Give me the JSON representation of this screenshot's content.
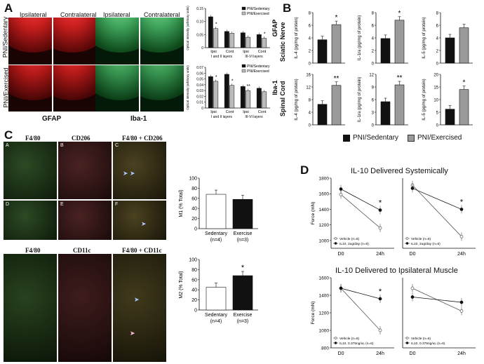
{
  "panels": {
    "A": {
      "label": "A",
      "col_headers": [
        "Ipsilateral",
        "Contralateral",
        "Ipsilateral",
        "Contralateral"
      ],
      "row_labels": [
        "PNI/Sedentary",
        "PNI/Exercised"
      ],
      "stain_labels": [
        "GFAP",
        "Iba-1"
      ],
      "colors": {
        "gfap": "#c81e1e",
        "iba1": "#3fa35a"
      }
    },
    "B": {
      "label": "B",
      "row_labels": [
        "Sciatic Nerve",
        "Spinal Cord"
      ]
    },
    "C": {
      "label": "C",
      "row1_headers": [
        "F4/80",
        "CD206",
        "F4/80 + CD206"
      ],
      "row1_letters": [
        "A",
        "B",
        "C",
        "D",
        "E",
        "F"
      ],
      "row2_headers": [
        "F4/80",
        "CD11c",
        "F4/80 + CD11c"
      ]
    },
    "D": {
      "label": "D",
      "titles": [
        "IL-10 Delivered Systemically",
        "IL-10 Delivered to Ipsilateral Muscle"
      ]
    }
  },
  "chart_data": [
    {
      "id": "A-gfap",
      "type": "bar",
      "ylabel": "Optical Intensity (arbitrary units)",
      "side_label": "GFAP",
      "ylim": [
        0,
        0.15
      ],
      "yticks": [
        "0",
        "0.05",
        "0.10",
        "0.15"
      ],
      "categories": [
        "Ipsi",
        "Cont",
        "Ipsi",
        "Cont"
      ],
      "groups": [
        "I and II layers",
        "III-VI layers"
      ],
      "series": [
        {
          "name": "PNI/Sedentary",
          "values": [
            0.118,
            0.062,
            0.057,
            0.05
          ]
        },
        {
          "name": "PNI/Exercised",
          "values": [
            0.073,
            0.055,
            0.04,
            0.036
          ]
        }
      ],
      "annotations": [
        "*",
        "*"
      ]
    },
    {
      "id": "A-iba1",
      "type": "bar",
      "ylabel": "Optical Intensity (arbitrary units)",
      "side_label": "Iba-1",
      "ylim": [
        0,
        0.07
      ],
      "yticks": [
        "0",
        "0.01",
        "0.02",
        "0.03",
        "0.04",
        "0.05",
        "0.06",
        "0.07"
      ],
      "categories": [
        "Ipsi",
        "Cont",
        "Ipsi",
        "Cont"
      ],
      "groups": [
        "I and II layers",
        "III-VI layers"
      ],
      "series": [
        {
          "name": "PNI/Sedentary",
          "values": [
            0.054,
            0.058,
            0.037,
            0.034
          ]
        },
        {
          "name": "PNI/Exercised",
          "values": [
            0.046,
            0.039,
            0.03,
            0.028
          ]
        }
      ],
      "annotations": [
        "*",
        "*",
        "**"
      ]
    },
    {
      "id": "B-sn-il4",
      "type": "bar",
      "ylabel": "IL-4 (pg/mg of protein)",
      "ylim": [
        0,
        8
      ],
      "yticks": [
        "0",
        "2",
        "4",
        "6",
        "8"
      ],
      "categories": [
        "PNI/Sedentary",
        "PNI/Exercised"
      ],
      "values": [
        3.7,
        6.1
      ],
      "annotation": "*"
    },
    {
      "id": "B-sn-il1ra",
      "type": "bar",
      "ylabel": "IL-1ra (pg/mg of protein)",
      "ylim": [
        0,
        8
      ],
      "yticks": [
        "0",
        "2",
        "4",
        "6",
        "8"
      ],
      "categories": [
        "PNI/Sedentary",
        "PNI/Exercised"
      ],
      "values": [
        3.9,
        6.8
      ],
      "annotation": "*"
    },
    {
      "id": "B-sn-il5",
      "type": "bar",
      "ylabel": "IL-5 (pg/mg of protein)",
      "ylim": [
        0,
        8
      ],
      "yticks": [
        "0",
        "2",
        "4",
        "6",
        "8"
      ],
      "categories": [
        "PNI/Sedentary",
        "PNI/Exercised"
      ],
      "values": [
        4.0,
        5.6
      ],
      "annotation": ""
    },
    {
      "id": "B-sc-il4",
      "type": "bar",
      "ylabel": "IL-4 (pg/mg of protein)",
      "ylim": [
        0,
        16
      ],
      "yticks": [
        "0",
        "4",
        "8",
        "12",
        "16"
      ],
      "categories": [
        "PNI/Sedentary",
        "PNI/Exercised"
      ],
      "values": [
        6.5,
        12.5
      ],
      "annotation": "**"
    },
    {
      "id": "B-sc-il1ra",
      "type": "bar",
      "ylabel": "IL-1ra (pg/mg of protein)",
      "ylim": [
        0,
        12
      ],
      "yticks": [
        "0",
        "3",
        "6",
        "9",
        "12"
      ],
      "categories": [
        "PNI/Sedentary",
        "PNI/Exercised"
      ],
      "values": [
        5.5,
        9.5
      ],
      "annotation": "**"
    },
    {
      "id": "B-sc-il5",
      "type": "bar",
      "ylabel": "IL-5 (pg/mg of protein)",
      "ylim": [
        0,
        20
      ],
      "yticks": [
        "0",
        "5",
        "10",
        "15",
        "20"
      ],
      "categories": [
        "PNI/Sedentary",
        "PNI/Exercised"
      ],
      "values": [
        6.2,
        14.0
      ],
      "annotation": "*"
    },
    {
      "id": "C-m1",
      "type": "bar",
      "ylabel": "M1 (% Total)",
      "ylim": [
        0,
        100
      ],
      "yticks": [
        "0",
        "20",
        "40",
        "60",
        "80",
        "100"
      ],
      "categories": [
        "Sedentary\n(n=4)",
        "Exercise\n(n=3)"
      ],
      "values": [
        68,
        58
      ],
      "annotation": ""
    },
    {
      "id": "C-m2",
      "type": "bar",
      "ylabel": "M2 (% Total)",
      "ylim": [
        0,
        100
      ],
      "yticks": [
        "0",
        "20",
        "40",
        "60",
        "80",
        "100"
      ],
      "categories": [
        "Sedentary\n(n=4)",
        "Exercise\n(n=3)"
      ],
      "values": [
        45,
        68
      ],
      "annotation": "*"
    },
    {
      "id": "D-sys-1",
      "type": "line",
      "ylabel": "Force (mN)",
      "ylim": [
        900,
        1800
      ],
      "yticks": [
        "1000",
        "1200",
        "1400",
        "1600",
        "1800"
      ],
      "x": [
        "D0",
        "24h"
      ],
      "series": [
        {
          "name": "Vehicle (n=6)",
          "values": [
            1590,
            1160
          ]
        },
        {
          "name": "IL10, 2ug/day (n=6)",
          "values": [
            1660,
            1390
          ]
        }
      ],
      "annotation": "*"
    },
    {
      "id": "D-sys-2",
      "type": "line",
      "ylabel": "",
      "ylim": [
        900,
        1800
      ],
      "yticks": [],
      "x": [
        "D0",
        "24h"
      ],
      "series": [
        {
          "name": "Vehicle (n=6)",
          "values": [
            1710,
            1050
          ]
        },
        {
          "name": "IL10, 2ug/day (n=6)",
          "values": [
            1670,
            1400
          ]
        }
      ],
      "annotation": "*"
    },
    {
      "id": "D-ipsi-1",
      "type": "line",
      "ylabel": "Force (mN)",
      "ylim": [
        800,
        1600
      ],
      "yticks": [
        "800",
        "1000",
        "1200",
        "1400",
        "1600"
      ],
      "x": [
        "D0",
        "24h"
      ],
      "series": [
        {
          "name": "Vehicle (n=6)",
          "values": [
            1480,
            1000
          ]
        },
        {
          "name": "IL10, 0.375ng/uL (n=6)",
          "values": [
            1480,
            1360
          ]
        }
      ],
      "annotation": "*"
    },
    {
      "id": "D-ipsi-2",
      "type": "line",
      "ylabel": "",
      "ylim": [
        800,
        1600
      ],
      "yticks": [],
      "x": [
        "D0",
        "24h"
      ],
      "series": [
        {
          "name": "Vehicle (n=6)",
          "values": [
            1480,
            1220
          ]
        },
        {
          "name": "IL10, 0.375ng/uL (n=6)",
          "values": [
            1380,
            1320
          ]
        }
      ],
      "annotation": ""
    }
  ],
  "legends": {
    "A": [
      "PNI/Sedentary",
      "PNI/Exercised"
    ],
    "B": [
      "PNI/Sedentary",
      "PNI/Exercised"
    ]
  }
}
